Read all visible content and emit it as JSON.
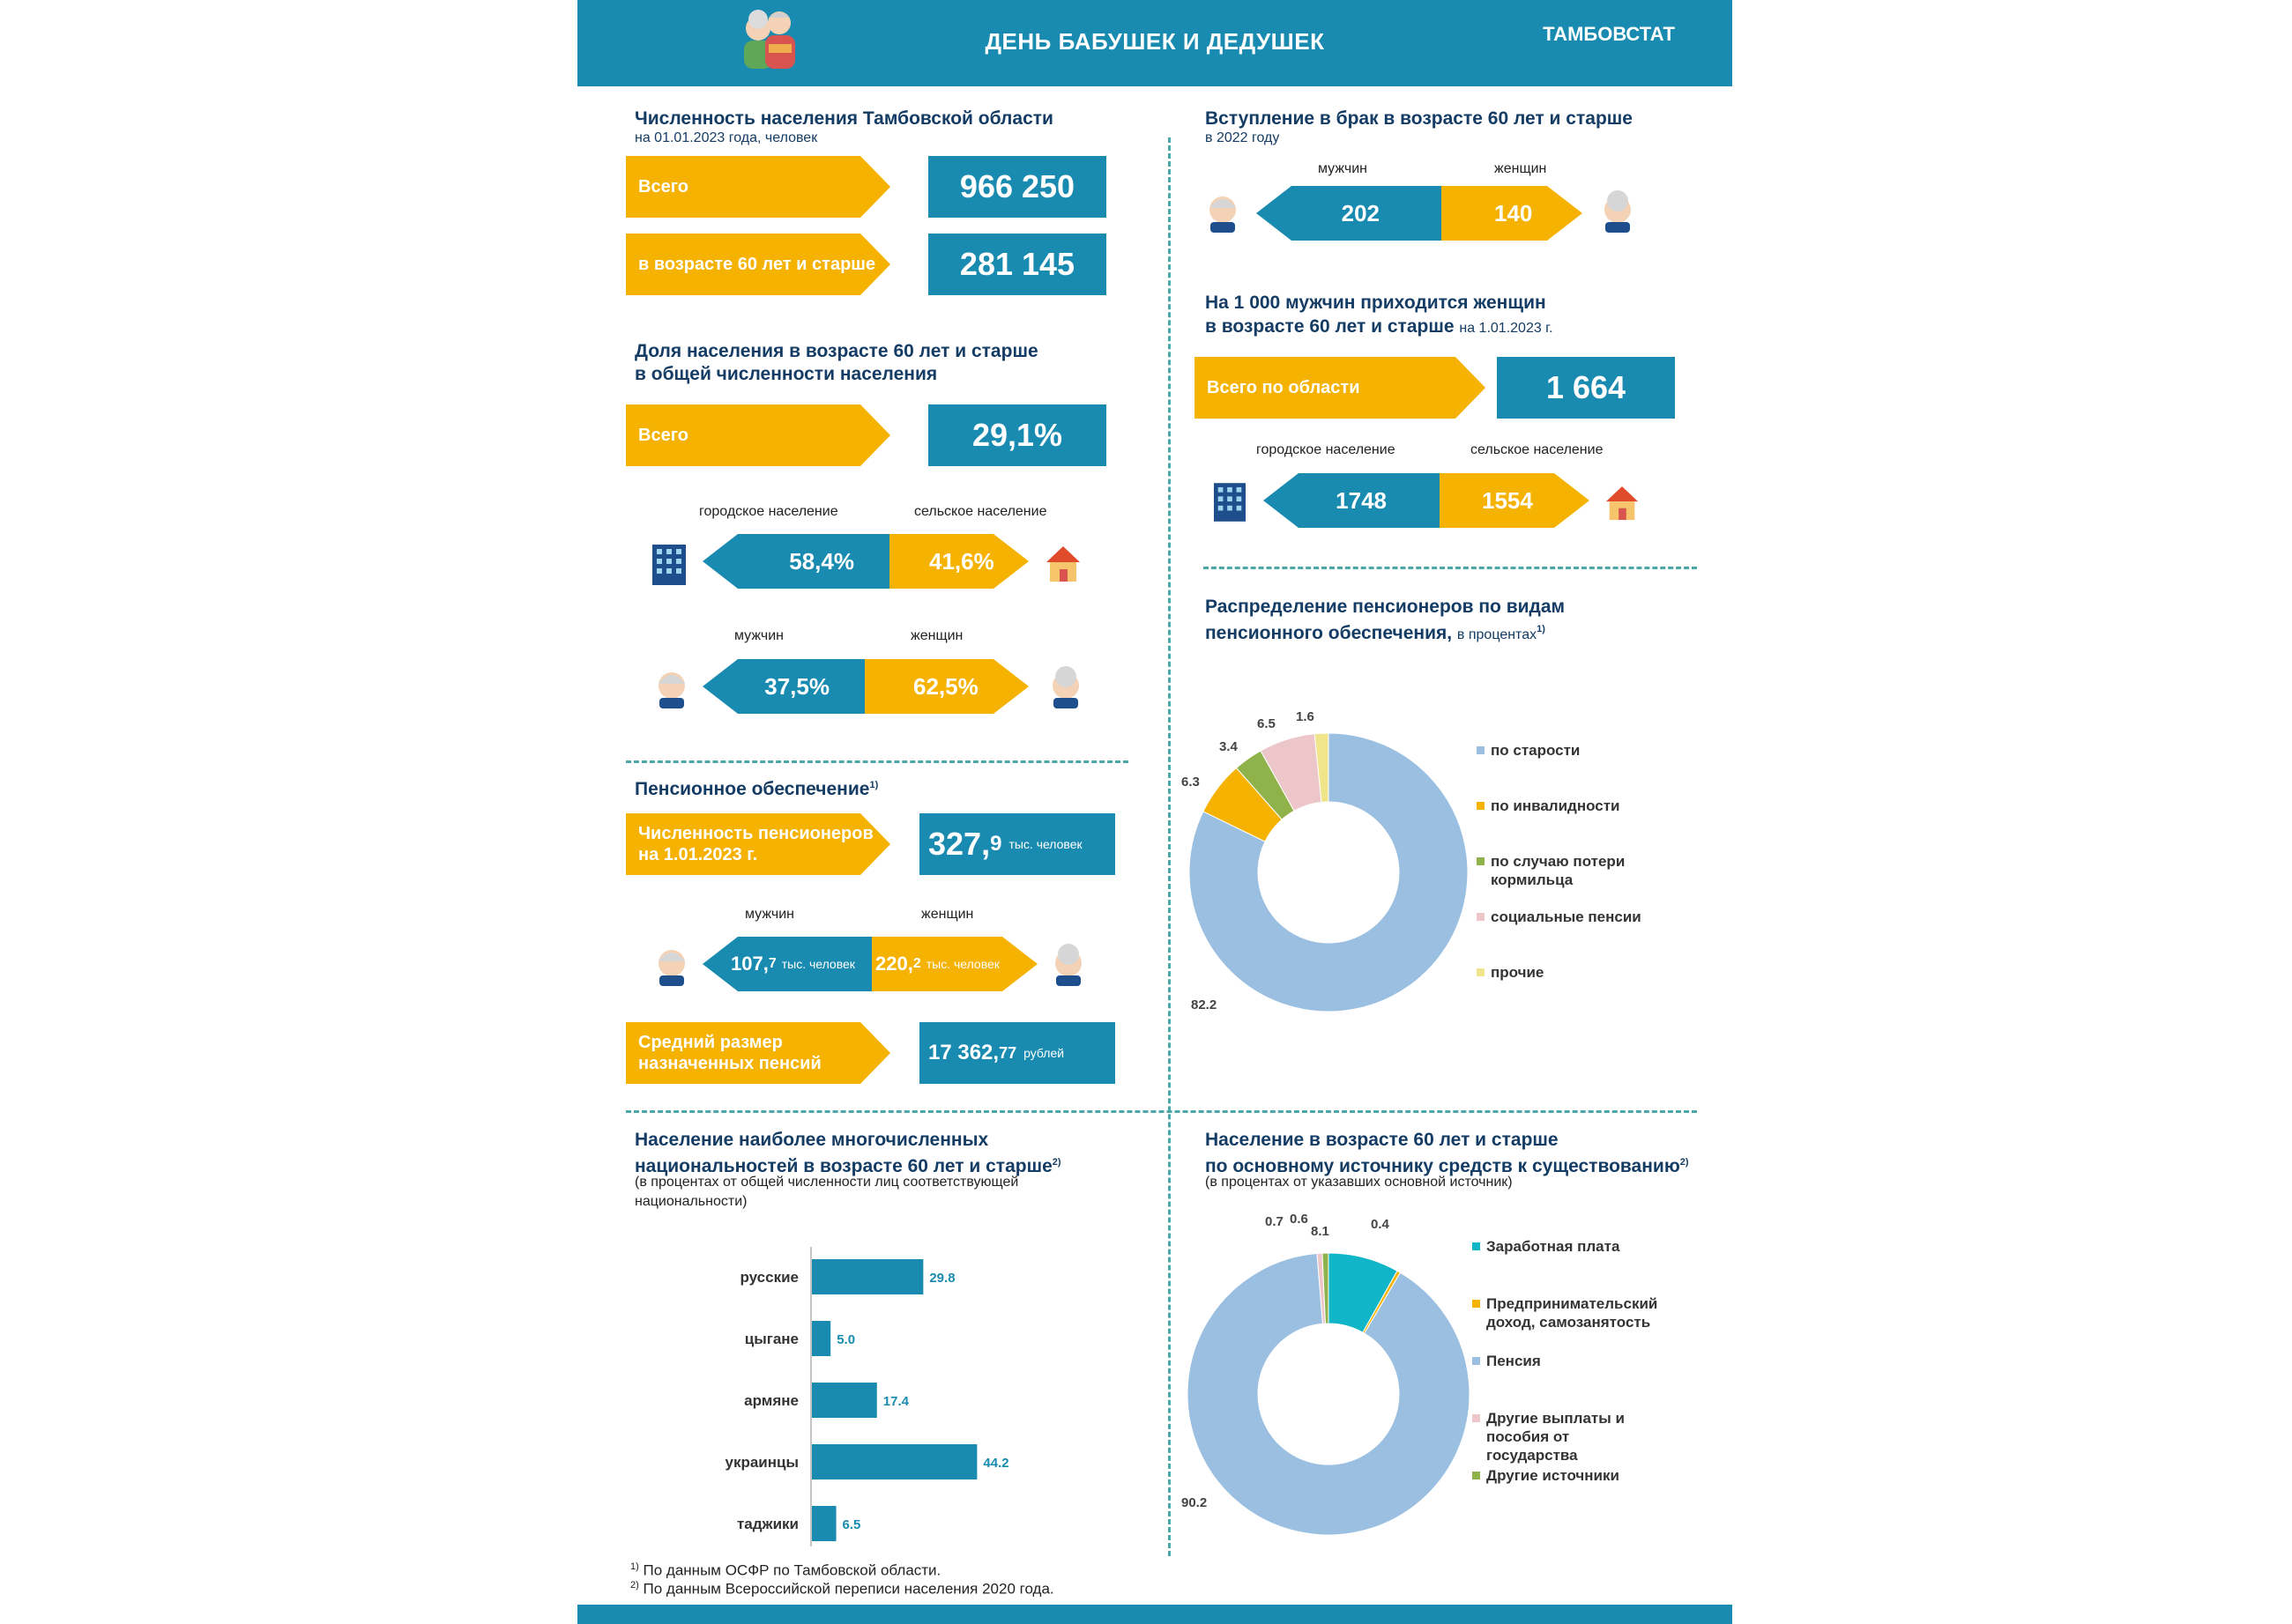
{
  "header": {
    "title": "ДЕНЬ БАБУШЕК И ДЕДУШЕК",
    "brand": "ТАМБОВСТАТ"
  },
  "population": {
    "title": "Численность населения Тамбовской области",
    "subtitle": "на 01.01.2023  года, человек",
    "total_label": "Всего",
    "total_value": "966 250",
    "age60_label": "в возрасте 60 лет и старше",
    "age60_value": "281 145"
  },
  "share": {
    "title_line1": "Доля населения в возрасте 60 лет и старше",
    "title_line2": "в общей численности населения",
    "total_label": "Всего",
    "total_value": "29,1%",
    "urban_label": "городское население",
    "rural_label": "сельское население",
    "urban_value": "58,4%",
    "rural_value": "41,6%",
    "men_label": "мужчин",
    "women_label": "женщин",
    "men_value": "37,5%",
    "women_value": "62,5%"
  },
  "pension": {
    "title": "Пенсионное обеспечение",
    "title_sup": "1)",
    "count_label_line1": "Численность пенсионеров",
    "count_label_line2": "на 1.01.2023 г.",
    "count_value": "327,",
    "count_value_dec": "9",
    "count_unit": "тыс. человек",
    "men_label": "мужчин",
    "women_label": "женщин",
    "men_value": "107,",
    "men_value_dec": "7",
    "men_unit": "тыс. человек",
    "women_value": "220,",
    "women_value_dec": "2",
    "women_unit": "тыс. человек",
    "avg_label_line1": "Средний размер",
    "avg_label_line2": "назначенных пенсий",
    "avg_value": "17 362,",
    "avg_value_dec": "77",
    "avg_unit": "рублей"
  },
  "marriage": {
    "title": "Вступление в брак в возрасте 60 лет и старше",
    "subtitle": "в 2022 году",
    "men_label": "мужчин",
    "women_label": "женщин",
    "men_value": "202",
    "women_value": "140"
  },
  "ratio": {
    "title_line1": "На 1 000 мужчин приходится женщин",
    "title_line2": "в возрасте 60 лет и старше",
    "title_line2_suffix": "на 1.01.2023 г.",
    "total_label": "Всего по области",
    "total_value": "1 664",
    "urban_label": "городское население",
    "rural_label": "сельское население",
    "urban_value": "1748",
    "rural_value": "1554"
  },
  "pension_types_title": {
    "line1": "Распределение пенсионеров по видам",
    "line2": "пенсионного обеспечения,",
    "line2_suffix": "в процентах",
    "sup": "1)"
  },
  "nations_title": {
    "line1": "Население наиболее многочисленных",
    "line2": "национальностей в возрасте 60 лет и старше",
    "sup": "2)",
    "line3": "(в процентах от общей численности лиц соответствующей",
    "line4": "национальности)"
  },
  "income_title": {
    "line1": "Население в возрасте 60 лет и старше",
    "line2": "по основному источнику средств к существованию",
    "sup": "2)",
    "line3": "(в процентах от указавших основной источник)"
  },
  "footnotes": {
    "n1_sup": "1)",
    "n1": "По данным  ОСФР по Тамбовской области.",
    "n2_sup": "2)",
    "n2": "По данным Всероссийской переписи населения 2020 года."
  },
  "colors": {
    "blue": "#1a8bb0",
    "yellow": "#f6b200",
    "navy": "#143c64"
  },
  "chart_data": [
    {
      "type": "pie",
      "id": "pension-types",
      "categories": [
        "по старости",
        "по инвалидности",
        "по случаю потери кормильца",
        "социальные пенсии",
        "прочие"
      ],
      "values": [
        82.2,
        6.3,
        3.4,
        6.5,
        1.6
      ],
      "colors": [
        "#9bbfe0",
        "#f6b200",
        "#8fb24a",
        "#ecc6c8",
        "#f0e58a"
      ],
      "legend": "right"
    },
    {
      "type": "bar",
      "id": "nations",
      "categories": [
        "русские",
        "цыгане",
        "армяне",
        "украинцы",
        "таджики"
      ],
      "values": [
        29.8,
        5.0,
        17.4,
        44.2,
        6.5
      ],
      "orientation": "horizontal",
      "xlim": [
        0,
        50
      ]
    },
    {
      "type": "pie",
      "id": "income-source",
      "categories": [
        "Заработная плата",
        "Предпринимательский доход, самозанятость",
        "Пенсия",
        "Другие выплаты и пособия от государства",
        "Другие источники"
      ],
      "values": [
        8.1,
        0.4,
        90.2,
        0.6,
        0.7
      ],
      "colors": [
        "#10b5c8",
        "#f6b200",
        "#9bbfe0",
        "#ecc6c8",
        "#8fb24a"
      ],
      "legend": "right"
    }
  ]
}
